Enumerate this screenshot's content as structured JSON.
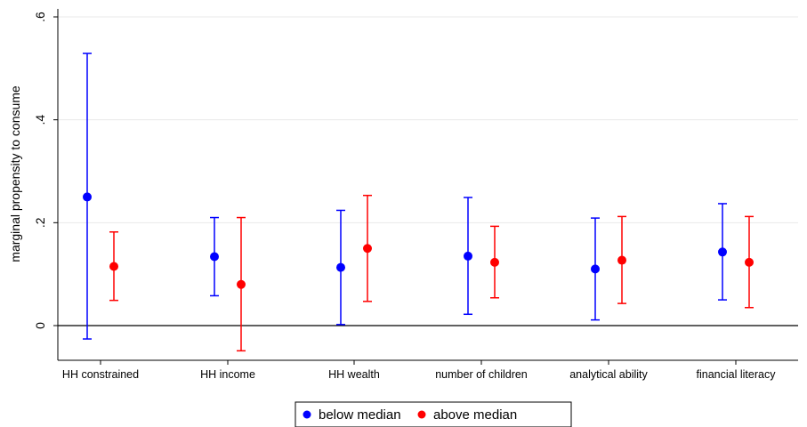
{
  "chart_data": {
    "type": "scatter",
    "subtype": "point-estimates-with-confidence-intervals",
    "title": "",
    "xlabel": "",
    "ylabel": "marginal propensity to consume",
    "categories": [
      "HH constrained",
      "HH income",
      "HH wealth",
      "number of children",
      "analytical ability",
      "financial literacy"
    ],
    "ylim": [
      -0.075,
      0.62
    ],
    "yticks": [
      0,
      0.2,
      0.4,
      0.6
    ],
    "ytick_labels": [
      "0",
      ".2",
      ".4",
      ".6"
    ],
    "grid": true,
    "reference_line": 0,
    "legend_position": "bottom",
    "series": [
      {
        "name": "below median",
        "color": "#0000ff",
        "values": [
          0.25,
          0.134,
          0.113,
          0.135,
          0.11,
          0.143
        ],
        "ci_low": [
          -0.026,
          0.058,
          0.002,
          0.022,
          0.011,
          0.05
        ],
        "ci_high": [
          0.529,
          0.21,
          0.224,
          0.249,
          0.209,
          0.237
        ]
      },
      {
        "name": "above median",
        "color": "#ff0000",
        "values": [
          0.115,
          0.08,
          0.15,
          0.123,
          0.127,
          0.123
        ],
        "ci_low": [
          0.049,
          -0.049,
          0.047,
          0.054,
          0.043,
          0.035
        ],
        "ci_high": [
          0.182,
          0.21,
          0.253,
          0.193,
          0.212,
          0.212
        ]
      }
    ]
  }
}
